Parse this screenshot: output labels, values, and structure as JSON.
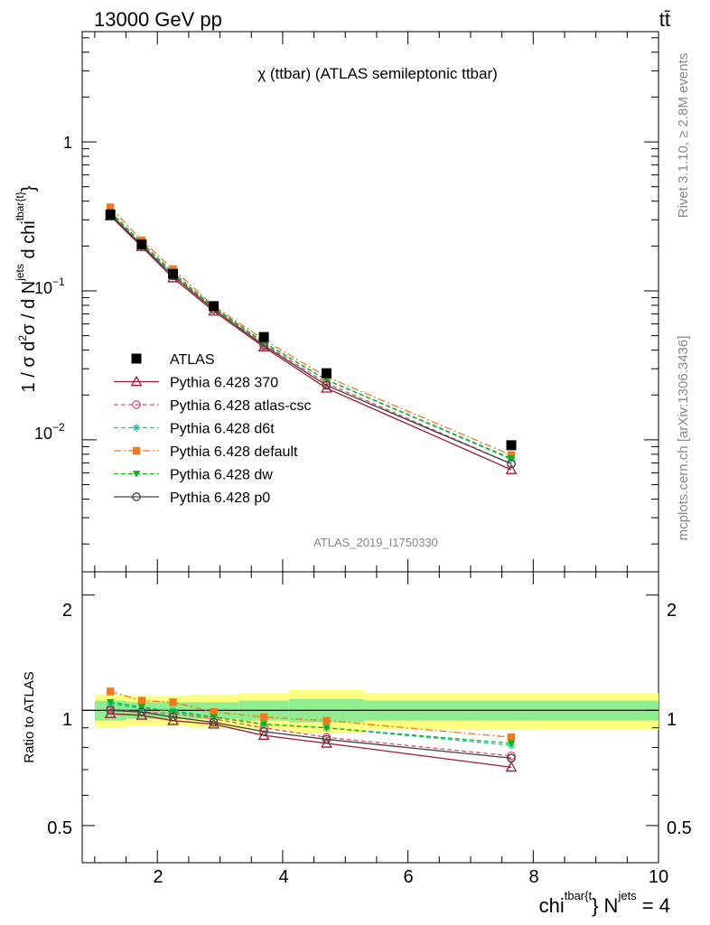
{
  "header": {
    "energy_label": "13000 GeV pp",
    "process_label": "tt̄"
  },
  "side_labels": {
    "rivet": "Rivet 3.1.10, ≥ 2.8M events",
    "site": "mcplots.cern.ch [arXiv:1306.3436]"
  },
  "main_panel": {
    "title": "χ (ttbar) (ATLAS semileptonic ttbar)",
    "analysis_id": "ATLAS_2019_I1750330",
    "ylabel_text": "1 / σ d²σ / d Nʲᵉᵗˢ d chiᵗᵇᵃʳ{ᵗ}",
    "ytick_labels": [
      "1",
      "10^-1",
      "10^-2"
    ],
    "yscale": "log",
    "ylim": [
      0.0013,
      5.5
    ]
  },
  "ratio_panel": {
    "ylabel": "Ratio to ATLAS",
    "ytick_labels": [
      "0.5",
      "1",
      "2"
    ],
    "ylim": [
      0.4,
      2.3
    ],
    "band_inner_color": "#90ee90",
    "band_outer_color": "#ffff80"
  },
  "xaxis": {
    "label": "chiᵗᵇᵃʳ{ᵗ}} Nʲᵉᵗˢ = 4",
    "xlim": [
      0.8,
      10.0
    ],
    "tick_labels": [
      "2",
      "4",
      "6",
      "8",
      "10"
    ]
  },
  "chart_data": {
    "type": "line",
    "x": [
      1.25,
      1.75,
      2.25,
      2.9,
      3.7,
      4.7,
      7.65
    ],
    "series": [
      {
        "name": "ATLAS",
        "color": "#000000",
        "marker": "square-filled",
        "dash": "none",
        "values": [
          0.325,
          0.205,
          0.13,
          0.079,
          0.049,
          0.028,
          0.0092
        ],
        "ratio": [
          1.0,
          1.0,
          1.0,
          1.0,
          1.0,
          1.0,
          1.0
        ]
      },
      {
        "name": "Pythia 6.428 370",
        "color": "#a01830",
        "marker": "triangle-open",
        "dash": "solid",
        "values": [
          0.318,
          0.198,
          0.122,
          0.073,
          0.042,
          0.0222,
          0.0063
        ],
        "ratio": [
          0.98,
          0.97,
          0.94,
          0.92,
          0.86,
          0.82,
          0.71
        ]
      },
      {
        "name": "Pythia 6.428 atlas-csc",
        "color": "#e05070",
        "marker": "circle-open",
        "dash": "dashed",
        "values": [
          0.328,
          0.203,
          0.128,
          0.077,
          0.044,
          0.024,
          0.0069
        ],
        "ratio": [
          1.01,
          0.99,
          0.98,
          0.95,
          0.9,
          0.85,
          0.76
        ]
      },
      {
        "name": "Pythia 6.428 d6t",
        "color": "#20c0a0",
        "marker": "star",
        "dash": "dashed",
        "values": [
          0.338,
          0.207,
          0.131,
          0.078,
          0.045,
          0.0252,
          0.0074
        ],
        "ratio": [
          1.04,
          1.01,
          1.0,
          0.96,
          0.92,
          0.9,
          0.81
        ]
      },
      {
        "name": "Pythia 6.428 default",
        "color": "#f07820",
        "marker": "square-filled",
        "dash": "dashdot",
        "values": [
          0.364,
          0.218,
          0.14,
          0.079,
          0.047,
          0.0265,
          0.0079
        ],
        "ratio": [
          1.12,
          1.06,
          1.05,
          0.99,
          0.96,
          0.94,
          0.85
        ]
      },
      {
        "name": "Pythia 6.428 dw",
        "color": "#10b020",
        "marker": "triangle-down-filled",
        "dash": "dashed",
        "values": [
          0.34,
          0.21,
          0.133,
          0.077,
          0.045,
          0.0253,
          0.0075
        ],
        "ratio": [
          1.05,
          1.02,
          0.99,
          0.96,
          0.92,
          0.9,
          0.82
        ]
      },
      {
        "name": "Pythia 6.428 p0",
        "color": "#404040",
        "marker": "circle-open",
        "dash": "solid",
        "values": [
          0.327,
          0.202,
          0.126,
          0.075,
          0.043,
          0.0232,
          0.0069
        ],
        "ratio": [
          1.0,
          0.99,
          0.96,
          0.93,
          0.88,
          0.84,
          0.75
        ]
      }
    ],
    "ratio_bands": {
      "x_edges": [
        1.0,
        1.5,
        2.0,
        2.5,
        3.3,
        4.1,
        5.3,
        10.0
      ],
      "inner": [
        0.06,
        0.05,
        0.05,
        0.05,
        0.06,
        0.07,
        0.06
      ],
      "outer": [
        0.1,
        0.09,
        0.09,
        0.1,
        0.11,
        0.13,
        0.11
      ]
    }
  }
}
